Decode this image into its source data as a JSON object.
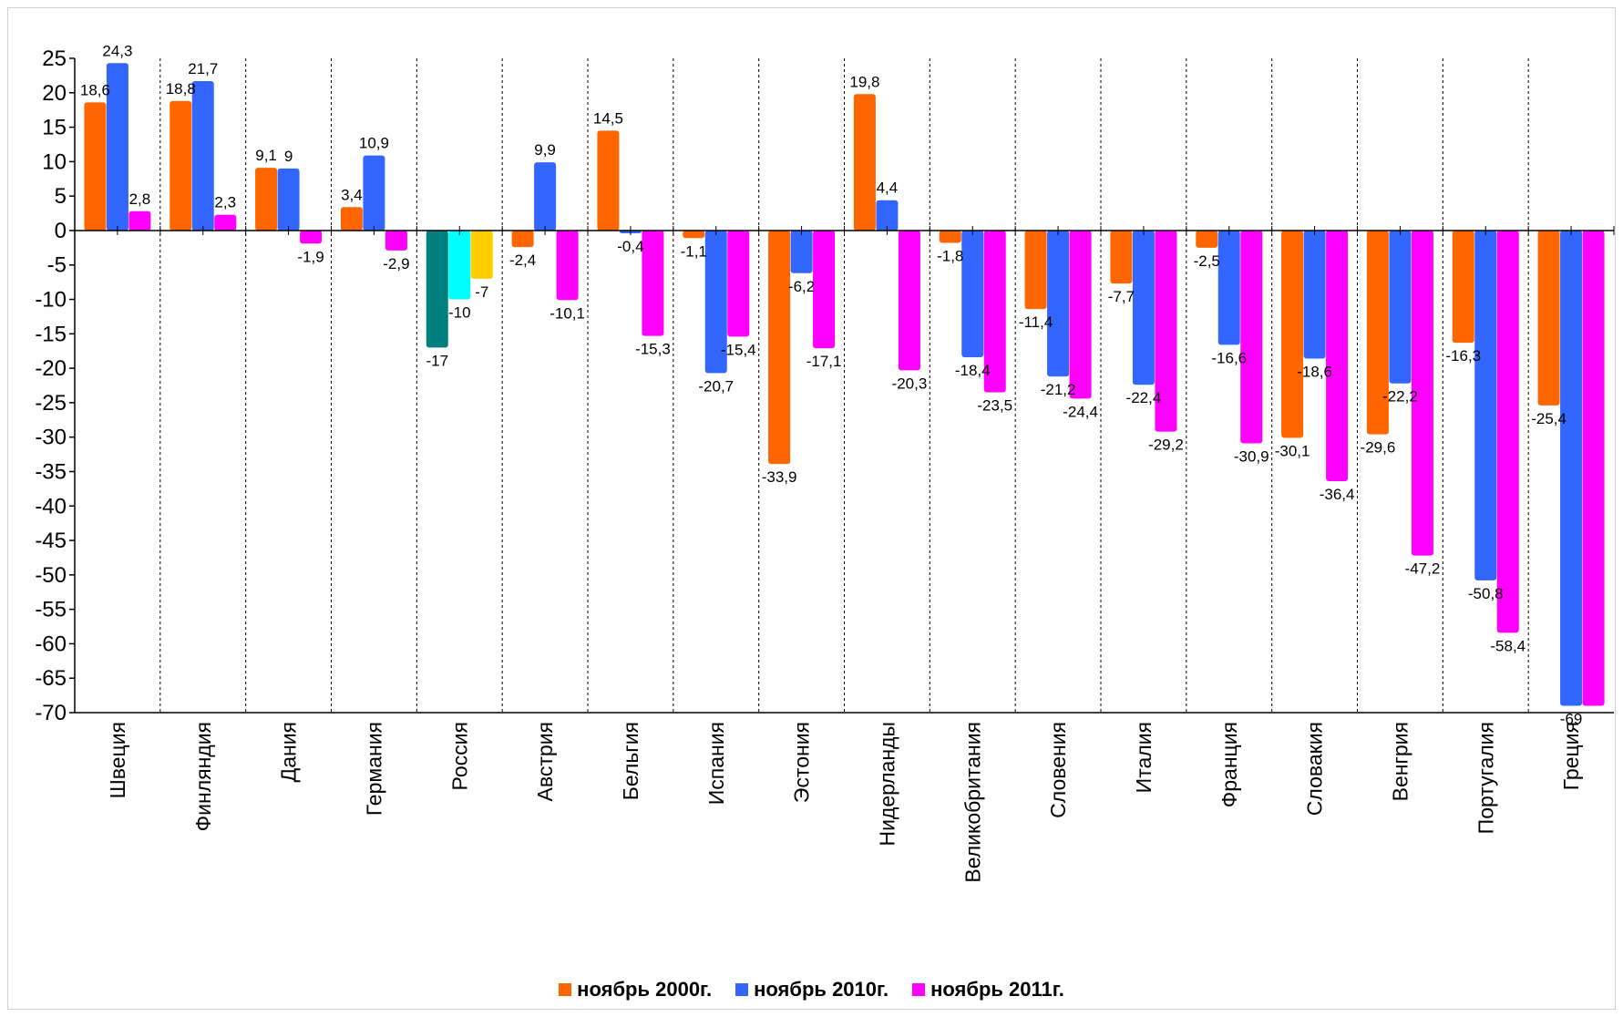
{
  "chart_data": {
    "type": "bar",
    "title": "",
    "xlabel": "",
    "ylabel": "",
    "ylim": [
      -70,
      25
    ],
    "yticks": [
      25,
      20,
      15,
      10,
      5,
      0,
      -5,
      -10,
      -15,
      -20,
      -25,
      -30,
      -35,
      -40,
      -45,
      -50,
      -55,
      -60,
      -65,
      -70
    ],
    "categories": [
      "Швеция",
      "Финляндия",
      "Дания",
      "Германия",
      "Россия",
      "Австрия",
      "Бельгия",
      "Испания",
      "Эстония",
      "Нидерланды",
      "Великобритания",
      "Словения",
      "Италия",
      "Франция",
      "Словакия",
      "Венгрия",
      "Португалия",
      "Греция"
    ],
    "series": [
      {
        "name": "ноябрь 2000г.",
        "color": "#ff6600",
        "values": [
          18.6,
          18.8,
          9.1,
          3.4,
          -17,
          -2.4,
          14.5,
          -1.1,
          -33.9,
          19.8,
          -1.8,
          -11.4,
          -7.7,
          -2.5,
          -30.1,
          -29.6,
          -16.3,
          -25.4
        ],
        "labels": [
          "18,6",
          "18,8",
          "9,1",
          "3,4",
          "-17",
          "-2,4",
          "14,5",
          "-1,1",
          "-33,9",
          "19,8",
          "-1,8",
          "-11,4",
          "-7,7",
          "-2,5",
          "-30,1",
          "-29,6",
          "-16,3",
          "-25,4"
        ]
      },
      {
        "name": "ноябрь 2010г.",
        "color": "#3366ff",
        "values": [
          24.3,
          21.7,
          9,
          10.9,
          -10,
          9.9,
          -0.4,
          -20.7,
          -6.2,
          4.4,
          -18.4,
          -21.2,
          -22.4,
          -16.6,
          -18.6,
          -22.2,
          -50.8,
          -69
        ],
        "labels": [
          "24,3",
          "21,7",
          "9",
          "10,9",
          "-10",
          "9,9",
          "-0,4",
          "-20,7",
          "-6,2",
          "4,4",
          "-18,4",
          "-21,2",
          "-22,4",
          "-16,6",
          "-18,6",
          "-22,2",
          "-50,8",
          "-69"
        ]
      },
      {
        "name": "ноябрь 2011г.",
        "color": "#ff00ff",
        "values": [
          2.8,
          2.3,
          -1.9,
          -2.9,
          -7,
          -10.1,
          -15.3,
          -15.4,
          -17.1,
          -20.3,
          -23.5,
          -24.4,
          -29.2,
          -30.9,
          -36.4,
          -47.2,
          -58.4,
          -69
        ],
        "labels": [
          "2,8",
          "2,3",
          "-1,9",
          "-2,9",
          "-7",
          "-10,1",
          "-15,3",
          "-15,4",
          "-17,1",
          "-20,3",
          "-23,5",
          "-24,4",
          "-29,2",
          "-30,9",
          "-36,4",
          "-47,2",
          "-58,4",
          ""
        ]
      }
    ],
    "highlight": {
      "category": "Россия",
      "colors": [
        "#007f7f",
        "#00ffff",
        "#ffcc00"
      ]
    },
    "legend": {
      "position": "bottom"
    },
    "grid": {
      "vertical_separators": true,
      "style": "dashed"
    }
  }
}
